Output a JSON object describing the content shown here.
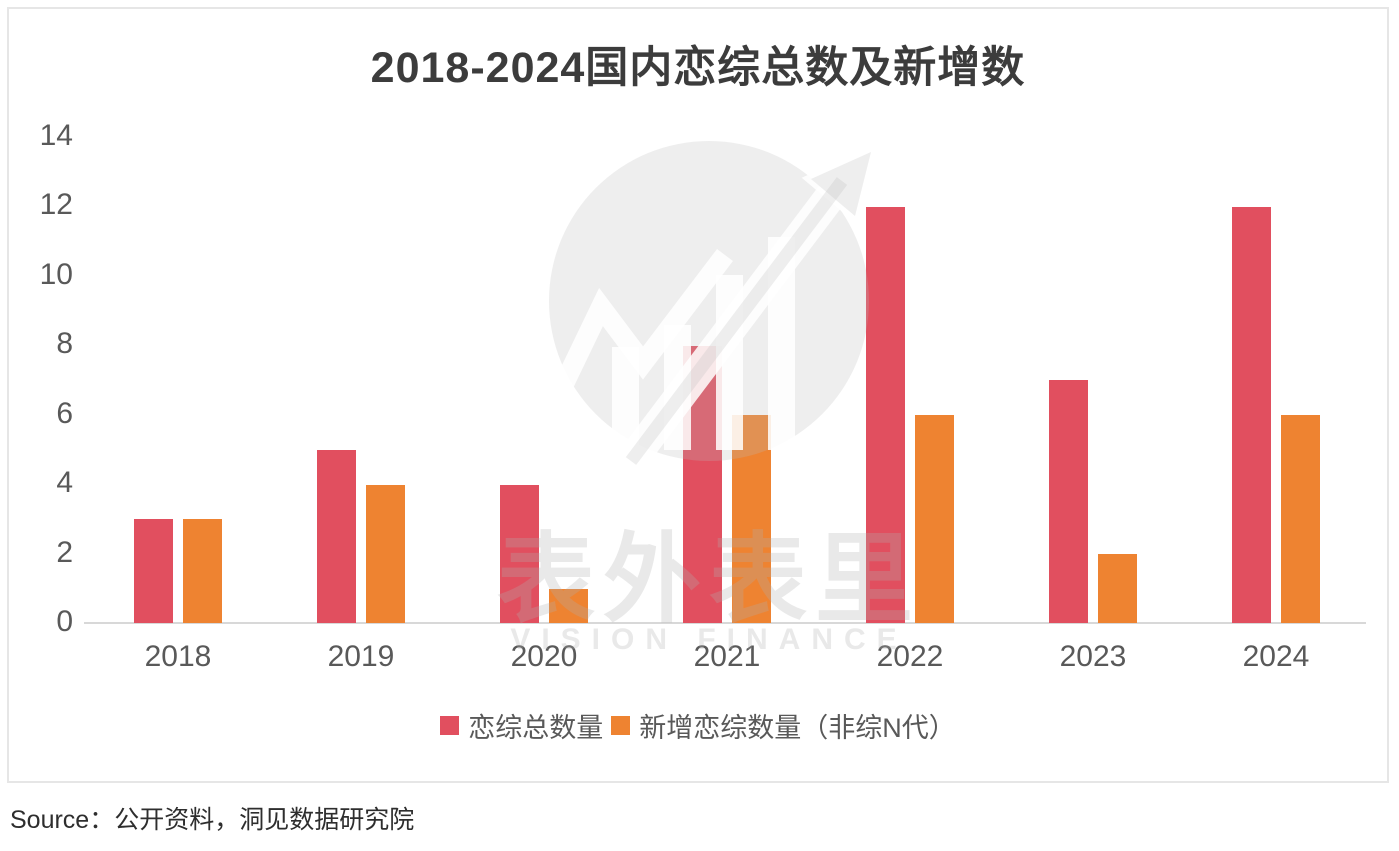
{
  "title": "2018-2024国内恋综总数及新增数",
  "source": "Source：公开资料，洞见数据研究院",
  "watermark": {
    "cjk_text": "表外表里",
    "latin_text": "VISION FINANCE"
  },
  "colors": {
    "total_series": "#E14F5F",
    "new_series": "#EE8331",
    "axis_line": "#D8D8D8",
    "tick_label": "#595959",
    "title_text": "#3C3C3C"
  },
  "legend": [
    {
      "label": "恋综总数量",
      "color": "#E14F5F"
    },
    {
      "label": "新增恋综数量（非综N代）",
      "color": "#EE8331"
    }
  ],
  "chart_data": {
    "type": "bar",
    "title": "2018-2024国内恋综总数及新增数",
    "categories": [
      "2018",
      "2019",
      "2020",
      "2021",
      "2022",
      "2023",
      "2024"
    ],
    "series": [
      {
        "name": "恋综总数量",
        "color": "#E14F5F",
        "values": [
          3,
          5,
          4,
          8,
          12,
          7,
          12
        ]
      },
      {
        "name": "新增恋综数量（非综N代）",
        "color": "#EE8331",
        "values": [
          3,
          4,
          1,
          6,
          6,
          2,
          6
        ]
      }
    ],
    "xlabel": "",
    "ylabel": "",
    "ylim": [
      0,
      14
    ],
    "yticks": [
      0,
      2,
      4,
      6,
      8,
      10,
      12,
      14
    ],
    "grid": false,
    "legend_position": "bottom"
  }
}
